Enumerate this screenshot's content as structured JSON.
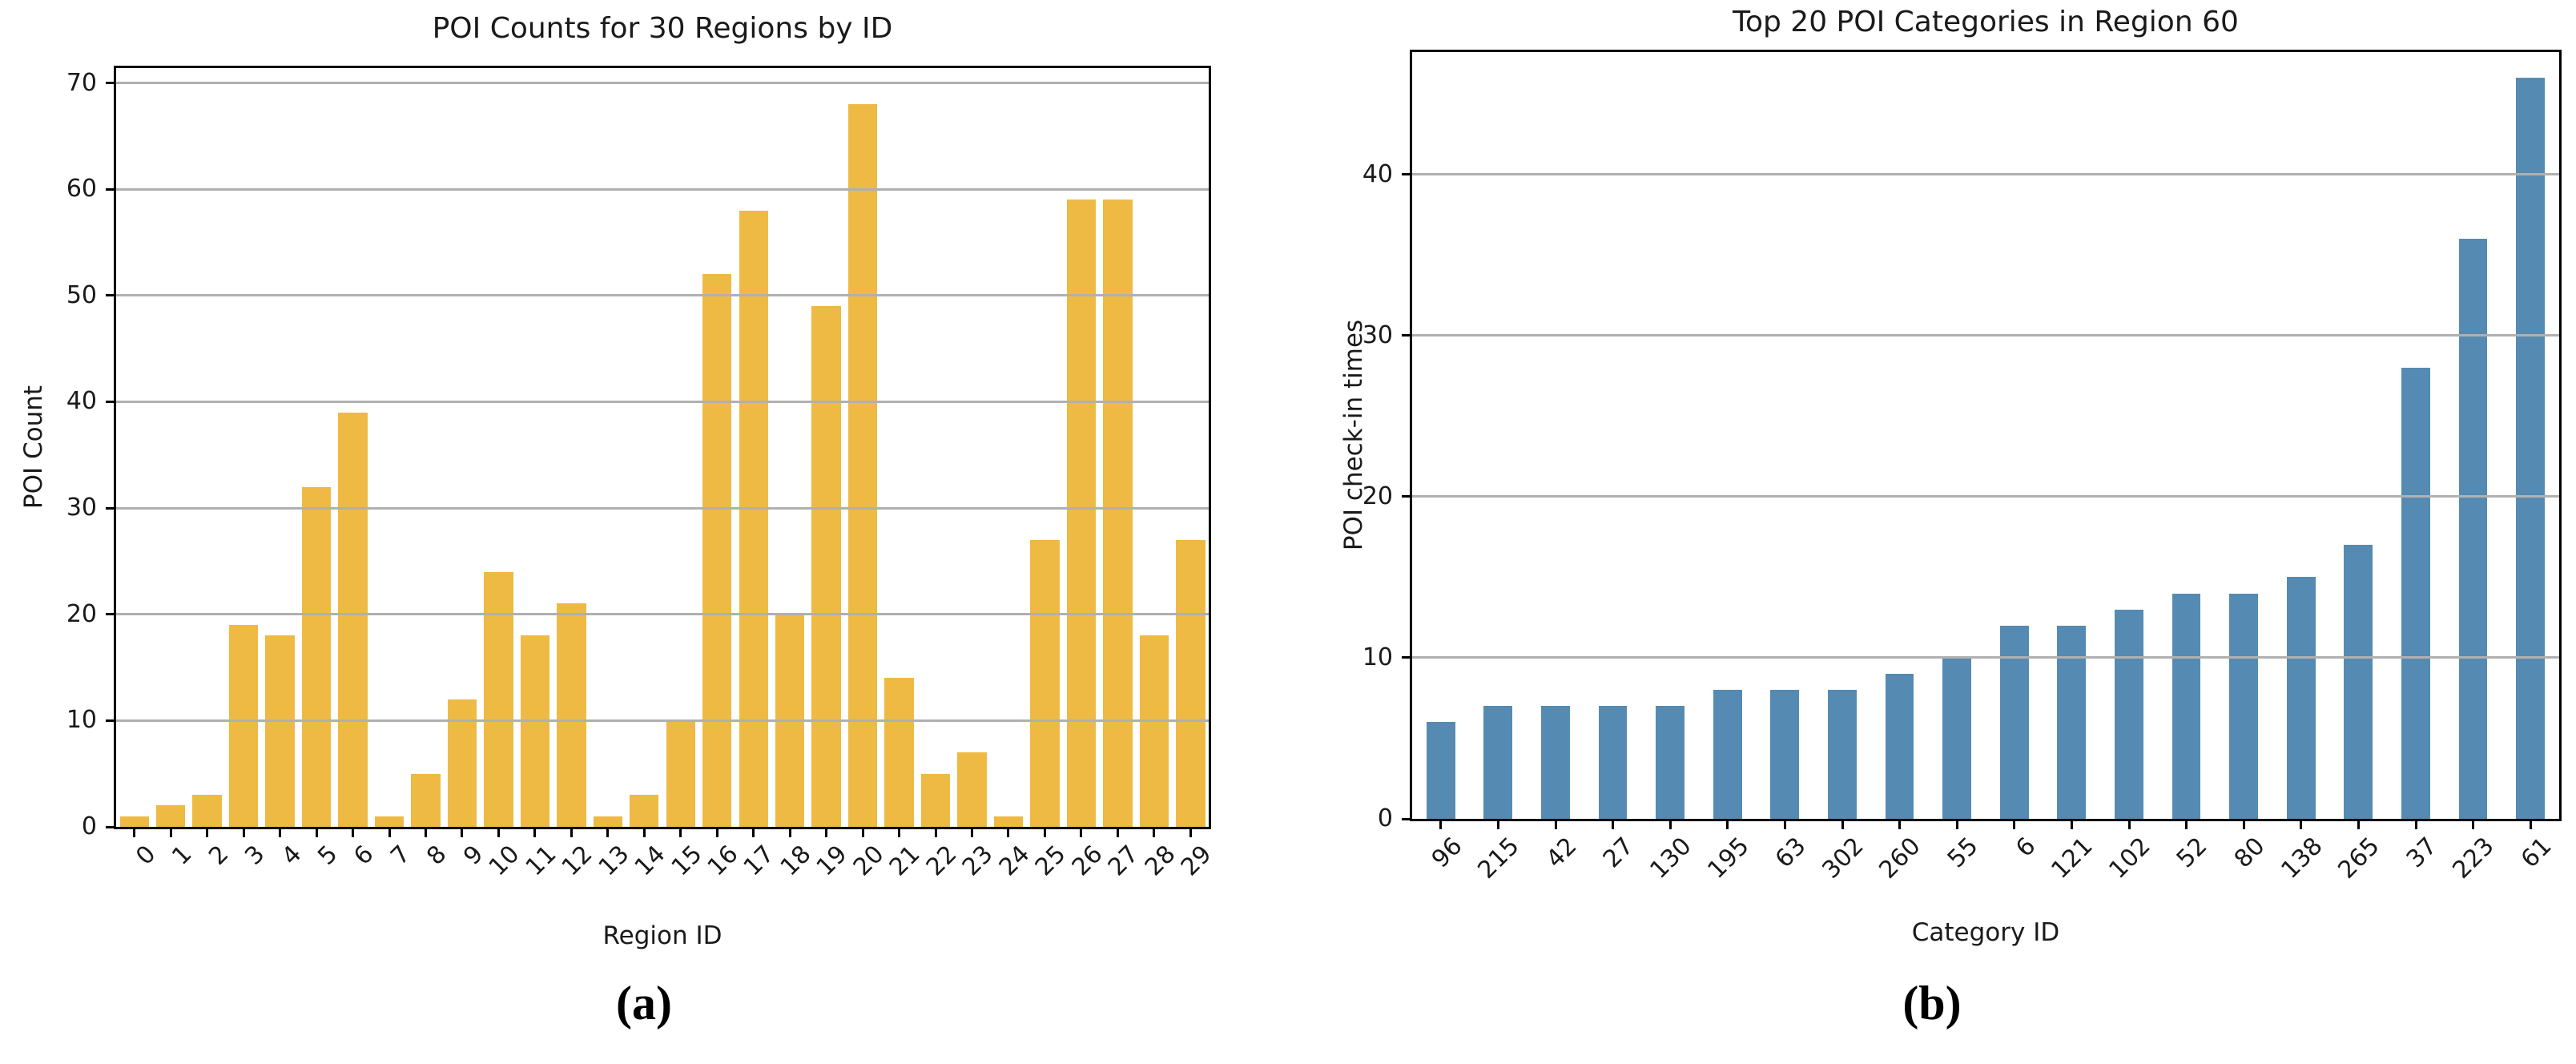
{
  "page": {
    "background": "#ffffff"
  },
  "chart_data": [
    {
      "type": "bar",
      "panel": "a",
      "caption": "(a)",
      "title": "POI Counts for 30 Regions by ID",
      "xlabel": "Region ID",
      "ylabel": "POI Count",
      "bar_color": "#eeba44",
      "grid": true,
      "grid_color": "#b0b0b0",
      "grid_above_bars": true,
      "legend": "none",
      "yticks": [
        0,
        10,
        20,
        30,
        40,
        50,
        60,
        70
      ],
      "ylim": [
        0,
        71.4
      ],
      "bar_width_frac": 0.8,
      "x_tick_rotation_deg": 45,
      "categories": [
        "0",
        "1",
        "2",
        "3",
        "4",
        "5",
        "6",
        "7",
        "8",
        "9",
        "10",
        "11",
        "12",
        "13",
        "14",
        "15",
        "16",
        "17",
        "18",
        "19",
        "20",
        "21",
        "22",
        "23",
        "24",
        "25",
        "26",
        "27",
        "28",
        "29"
      ],
      "values": [
        1,
        2,
        3,
        19,
        18,
        32,
        39,
        1,
        5,
        12,
        24,
        18,
        21,
        1,
        3,
        10,
        52,
        58,
        20,
        49,
        68,
        14,
        5,
        7,
        1,
        27,
        59,
        59,
        18,
        27
      ]
    },
    {
      "type": "bar",
      "panel": "b",
      "caption": "(b)",
      "title": "Top 20 POI Categories in Region 60",
      "xlabel": "Category ID",
      "ylabel": "POI check-in times",
      "bar_color": "#558bb2",
      "grid": true,
      "grid_color": "#b0b0b0",
      "grid_above_bars": true,
      "legend": "none",
      "yticks": [
        0,
        10,
        20,
        30,
        40
      ],
      "ylim": [
        0,
        47.6
      ],
      "bar_width_frac": 0.5,
      "x_tick_rotation_deg": 45,
      "categories": [
        "96",
        "215",
        "42",
        "27",
        "130",
        "195",
        "63",
        "302",
        "260",
        "55",
        "6",
        "121",
        "102",
        "52",
        "80",
        "138",
        "265",
        "37",
        "223",
        "61"
      ],
      "values": [
        6,
        7,
        7,
        7,
        7,
        8,
        8,
        8,
        9,
        10,
        12,
        12,
        13,
        14,
        14,
        15,
        17,
        28,
        36,
        46
      ]
    }
  ]
}
